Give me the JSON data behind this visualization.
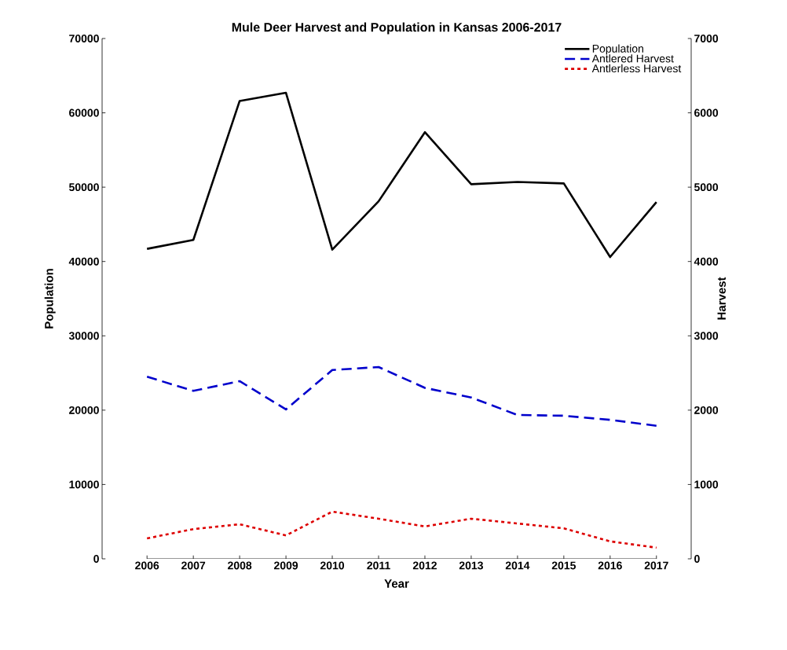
{
  "chart_data": {
    "type": "line",
    "title": "Mule Deer Harvest and Population in Kansas 2006-2017",
    "xlabel": "Year",
    "ylabel": "Population",
    "y2label": "Harvest",
    "categories": [
      "2006",
      "2007",
      "2008",
      "2009",
      "2010",
      "2011",
      "2012",
      "2013",
      "2014",
      "2015",
      "2016",
      "2017"
    ],
    "ylim": [
      0,
      70000
    ],
    "yticks": [
      0,
      10000,
      20000,
      30000,
      40000,
      50000,
      60000,
      70000
    ],
    "y2lim": [
      0,
      7000
    ],
    "y2ticks": [
      0,
      1000,
      2000,
      3000,
      4000,
      5000,
      6000,
      7000
    ],
    "legend": "top right",
    "series": [
      {
        "name": "Population",
        "color": "#000000",
        "line_style": "solid",
        "values": [
          41700,
          42900,
          61600,
          62700,
          41600,
          48100,
          57400,
          50400,
          50700,
          50500,
          40600,
          48000
        ]
      },
      {
        "name": "Antlered Harvest",
        "color": "#0000cc",
        "line_style": "dashed",
        "axis": "y2",
        "values": [
          2450,
          2260,
          2390,
          2010,
          2540,
          2580,
          2300,
          2170,
          1935,
          1925,
          1870,
          1790
        ]
      },
      {
        "name": "Antlerless Harvest",
        "color": "#dd0000",
        "line_style": "dotted",
        "axis": "y2",
        "values": [
          275,
          400,
          465,
          315,
          635,
          540,
          435,
          540,
          475,
          410,
          235,
          150
        ]
      }
    ]
  }
}
